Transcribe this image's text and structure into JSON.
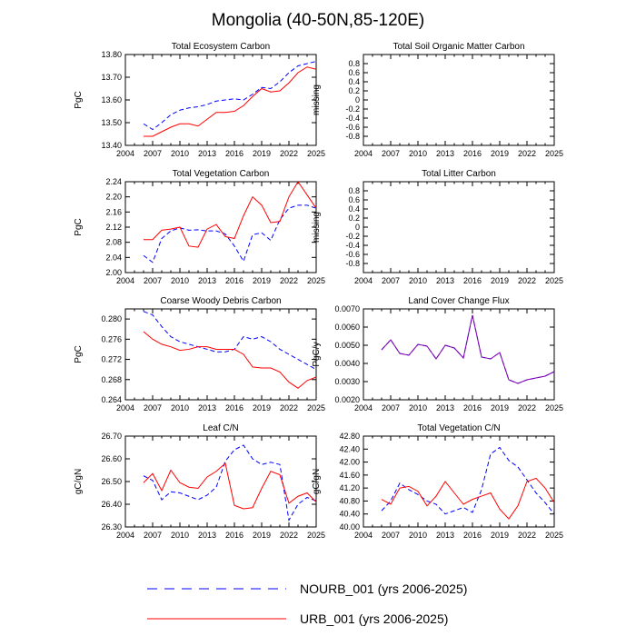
{
  "page_title": "Mongolia (40-50N,85-120E)",
  "colors": {
    "nourb": "#0000ff",
    "urb": "#ff0000",
    "land_cover": "#7f00b0",
    "axis": "#000000"
  },
  "legend": {
    "position": "bottom-center",
    "entries": [
      {
        "name": "NOURB_001 (yrs 2006-2025)",
        "style": "dashed",
        "color": "#0000ff"
      },
      {
        "name": "URB_001 (yrs 2006-2025)",
        "style": "solid",
        "color": "#ff0000"
      }
    ]
  },
  "chart_data": [
    {
      "type": "line",
      "title": "Total Ecosystem Carbon",
      "xlabel": "",
      "ylabel": "PgC",
      "xlim": [
        2004,
        2025
      ],
      "ylim": [
        13.4,
        13.8
      ],
      "xticks": [
        "2004",
        "2007",
        "2010",
        "2013",
        "2016",
        "2019",
        "2022",
        "2025"
      ],
      "yticks": [
        "13.40",
        "13.50",
        "13.60",
        "13.70",
        "13.80"
      ],
      "x": [
        2006,
        2007,
        2008,
        2009,
        2010,
        2011,
        2012,
        2013,
        2014,
        2015,
        2016,
        2017,
        2018,
        2019,
        2020,
        2021,
        2022,
        2023,
        2024,
        2025
      ],
      "series": [
        {
          "name": "NOURB_001",
          "values": [
            13.495,
            13.47,
            13.5,
            13.535,
            13.555,
            13.565,
            13.57,
            13.58,
            13.595,
            13.6,
            13.605,
            13.6,
            13.625,
            13.655,
            13.65,
            13.68,
            13.72,
            13.75,
            13.76,
            13.77
          ]
        },
        {
          "name": "URB_001",
          "values": [
            13.44,
            13.44,
            13.46,
            13.48,
            13.495,
            13.495,
            13.485,
            13.515,
            13.545,
            13.545,
            13.55,
            13.575,
            13.615,
            13.65,
            13.635,
            13.64,
            13.675,
            13.72,
            13.745,
            13.735
          ]
        }
      ]
    },
    {
      "type": "line",
      "title": "Total Soil Organic Matter Carbon",
      "xlabel": "",
      "ylabel": "missing",
      "xlim": [
        2004,
        2025
      ],
      "ylim": [
        -1.0,
        1.0
      ],
      "xticks": [
        "2004",
        "2007",
        "2010",
        "2013",
        "2016",
        "2019",
        "2022",
        "2025"
      ],
      "yticks": [
        "-0.8",
        "-0.4",
        "0",
        "0.4",
        "0.8"
      ],
      "ytick_values": [
        -0.8,
        -0.6,
        -0.4,
        -0.2,
        0,
        0.2,
        0.4,
        0.6,
        0.8
      ],
      "yticklabels": [
        "-0.8",
        "-0.6",
        "-0.4",
        "-0.2",
        "0",
        "0.2",
        "0.4",
        "0.6",
        "0.8"
      ],
      "x": [],
      "series": []
    },
    {
      "type": "line",
      "title": "Total Vegetation Carbon",
      "xlabel": "",
      "ylabel": "PgC",
      "xlim": [
        2004,
        2025
      ],
      "ylim": [
        2.0,
        2.24
      ],
      "xticks": [
        "2004",
        "2007",
        "2010",
        "2013",
        "2016",
        "2019",
        "2022",
        "2025"
      ],
      "yticks": [
        "2.00",
        "2.04",
        "2.08",
        "2.12",
        "2.16",
        "2.20",
        "2.24"
      ],
      "x": [
        2006,
        2007,
        2008,
        2009,
        2010,
        2011,
        2012,
        2013,
        2014,
        2015,
        2016,
        2017,
        2018,
        2019,
        2020,
        2021,
        2022,
        2023,
        2024,
        2025
      ],
      "series": [
        {
          "name": "NOURB_001",
          "values": [
            2.045,
            2.027,
            2.09,
            2.11,
            2.118,
            2.112,
            2.113,
            2.11,
            2.11,
            2.102,
            2.07,
            2.03,
            2.1,
            2.105,
            2.085,
            2.14,
            2.17,
            2.178,
            2.178,
            2.17
          ]
        },
        {
          "name": "URB_001",
          "values": [
            2.087,
            2.087,
            2.112,
            2.115,
            2.12,
            2.07,
            2.067,
            2.115,
            2.127,
            2.095,
            2.09,
            2.15,
            2.2,
            2.178,
            2.132,
            2.135,
            2.2,
            2.24,
            2.205,
            2.17
          ]
        }
      ]
    },
    {
      "type": "line",
      "title": "Total Litter Carbon",
      "xlabel": "",
      "ylabel": "missing",
      "xlim": [
        2004,
        2025
      ],
      "ylim": [
        -1.0,
        1.0
      ],
      "xticks": [
        "2004",
        "2007",
        "2010",
        "2013",
        "2016",
        "2019",
        "2022",
        "2025"
      ],
      "yticks": [
        "-0.8",
        "-0.4",
        "0",
        "0.4",
        "0.8"
      ],
      "ytick_values": [
        -0.8,
        -0.6,
        -0.4,
        -0.2,
        0,
        0.2,
        0.4,
        0.6,
        0.8
      ],
      "yticklabels": [
        "-0.8",
        "-0.6",
        "-0.4",
        "-0.2",
        "0",
        "0.2",
        "0.4",
        "0.6",
        "0.8"
      ],
      "x": [],
      "series": []
    },
    {
      "type": "line",
      "title": "Coarse Woody Debris Carbon",
      "xlabel": "",
      "ylabel": "PgC",
      "xlim": [
        2004,
        2025
      ],
      "ylim": [
        0.264,
        0.282
      ],
      "xticks": [
        "2004",
        "2007",
        "2010",
        "2013",
        "2016",
        "2019",
        "2022",
        "2025"
      ],
      "yticks": [
        "0.264",
        "0.268",
        "0.272",
        "0.276",
        "0.280"
      ],
      "x": [
        2006,
        2007,
        2008,
        2009,
        2010,
        2011,
        2012,
        2013,
        2014,
        2015,
        2016,
        2017,
        2018,
        2019,
        2020,
        2021,
        2022,
        2023,
        2024,
        2025
      ],
      "series": [
        {
          "name": "NOURB_001",
          "values": [
            0.2815,
            0.2808,
            0.2785,
            0.2765,
            0.2755,
            0.275,
            0.2745,
            0.274,
            0.2735,
            0.2735,
            0.274,
            0.2765,
            0.276,
            0.2765,
            0.2755,
            0.274,
            0.273,
            0.272,
            0.271,
            0.27
          ]
        },
        {
          "name": "URB_001",
          "values": [
            0.2775,
            0.276,
            0.275,
            0.2745,
            0.2738,
            0.274,
            0.2745,
            0.2745,
            0.274,
            0.274,
            0.274,
            0.273,
            0.2705,
            0.2703,
            0.2703,
            0.2695,
            0.2675,
            0.2663,
            0.2678,
            0.2685
          ]
        }
      ]
    },
    {
      "type": "line",
      "title": "Land Cover Change Flux",
      "xlabel": "",
      "ylabel": "PgC/y",
      "xlim": [
        2004,
        2025
      ],
      "ylim": [
        0.002,
        0.007
      ],
      "xticks": [
        "2004",
        "2007",
        "2010",
        "2013",
        "2016",
        "2019",
        "2022",
        "2025"
      ],
      "yticks": [
        "0.0020",
        "0.0030",
        "0.0040",
        "0.0050",
        "0.0060",
        "0.0070"
      ],
      "x": [
        2006,
        2007,
        2008,
        2009,
        2010,
        2011,
        2012,
        2013,
        2014,
        2015,
        2016,
        2017,
        2018,
        2019,
        2020,
        2021,
        2022,
        2023,
        2024,
        2025
      ],
      "series": [
        {
          "name": "NOURB_001",
          "values": [
            0.00475,
            0.0053,
            0.00455,
            0.00445,
            0.00505,
            0.00495,
            0.00425,
            0.005,
            0.00485,
            0.0043,
            0.00665,
            0.00435,
            0.00425,
            0.0046,
            0.0031,
            0.0029,
            0.0031,
            0.0032,
            0.0033,
            0.00355
          ]
        },
        {
          "name": "URB_001",
          "values": [
            0.00475,
            0.0053,
            0.00455,
            0.00445,
            0.00505,
            0.00495,
            0.00425,
            0.005,
            0.00485,
            0.0043,
            0.00665,
            0.00435,
            0.00425,
            0.0046,
            0.0031,
            0.0029,
            0.0031,
            0.0032,
            0.0033,
            0.00355
          ]
        }
      ]
    },
    {
      "type": "line",
      "title": "Leaf C/N",
      "xlabel": "",
      "ylabel": "gC/gN",
      "xlim": [
        2004,
        2025
      ],
      "ylim": [
        26.3,
        26.7
      ],
      "xticks": [
        "2004",
        "2007",
        "2010",
        "2013",
        "2016",
        "2019",
        "2022",
        "2025"
      ],
      "yticks": [
        "26.30",
        "26.40",
        "26.50",
        "26.60",
        "26.70"
      ],
      "x": [
        2006,
        2007,
        2008,
        2009,
        2010,
        2011,
        2012,
        2013,
        2014,
        2015,
        2016,
        2017,
        2018,
        2019,
        2020,
        2021,
        2022,
        2023,
        2024,
        2025
      ],
      "series": [
        {
          "name": "NOURB_001",
          "values": [
            26.525,
            26.505,
            26.42,
            26.455,
            26.45,
            26.435,
            26.42,
            26.44,
            26.475,
            26.59,
            26.64,
            26.66,
            26.6,
            26.575,
            26.585,
            26.575,
            26.33,
            26.4,
            26.43,
            26.415
          ]
        },
        {
          "name": "URB_001",
          "values": [
            26.495,
            26.535,
            26.46,
            26.55,
            26.495,
            26.475,
            26.47,
            26.52,
            26.545,
            26.58,
            26.395,
            26.38,
            26.385,
            26.47,
            26.545,
            26.53,
            26.405,
            26.435,
            26.45,
            26.41
          ]
        }
      ]
    },
    {
      "type": "line",
      "title": "Total Vegetation C/N",
      "xlabel": "",
      "ylabel": "gC/gN",
      "xlim": [
        2004,
        2025
      ],
      "ylim": [
        40.0,
        42.8
      ],
      "xticks": [
        "2004",
        "2007",
        "2010",
        "2013",
        "2016",
        "2019",
        "2022",
        "2025"
      ],
      "yticks": [
        "40.00",
        "40.40",
        "40.80",
        "41.20",
        "41.60",
        "42.00",
        "42.40",
        "42.80"
      ],
      "x": [
        2006,
        2007,
        2008,
        2009,
        2010,
        2011,
        2012,
        2013,
        2014,
        2015,
        2016,
        2017,
        2018,
        2019,
        2020,
        2021,
        2022,
        2023,
        2024,
        2025
      ],
      "series": [
        {
          "name": "NOURB_001",
          "values": [
            40.5,
            40.8,
            41.35,
            41.15,
            41.0,
            40.8,
            40.7,
            40.4,
            40.5,
            40.6,
            40.45,
            41.15,
            42.25,
            42.45,
            42.05,
            41.85,
            41.45,
            41.05,
            40.75,
            40.4
          ]
        },
        {
          "name": "URB_001",
          "values": [
            40.85,
            40.7,
            41.2,
            41.25,
            41.1,
            40.65,
            40.95,
            41.4,
            41.05,
            40.7,
            40.85,
            40.95,
            41.05,
            40.55,
            40.25,
            40.65,
            41.4,
            41.5,
            41.2,
            40.75
          ]
        }
      ]
    }
  ]
}
